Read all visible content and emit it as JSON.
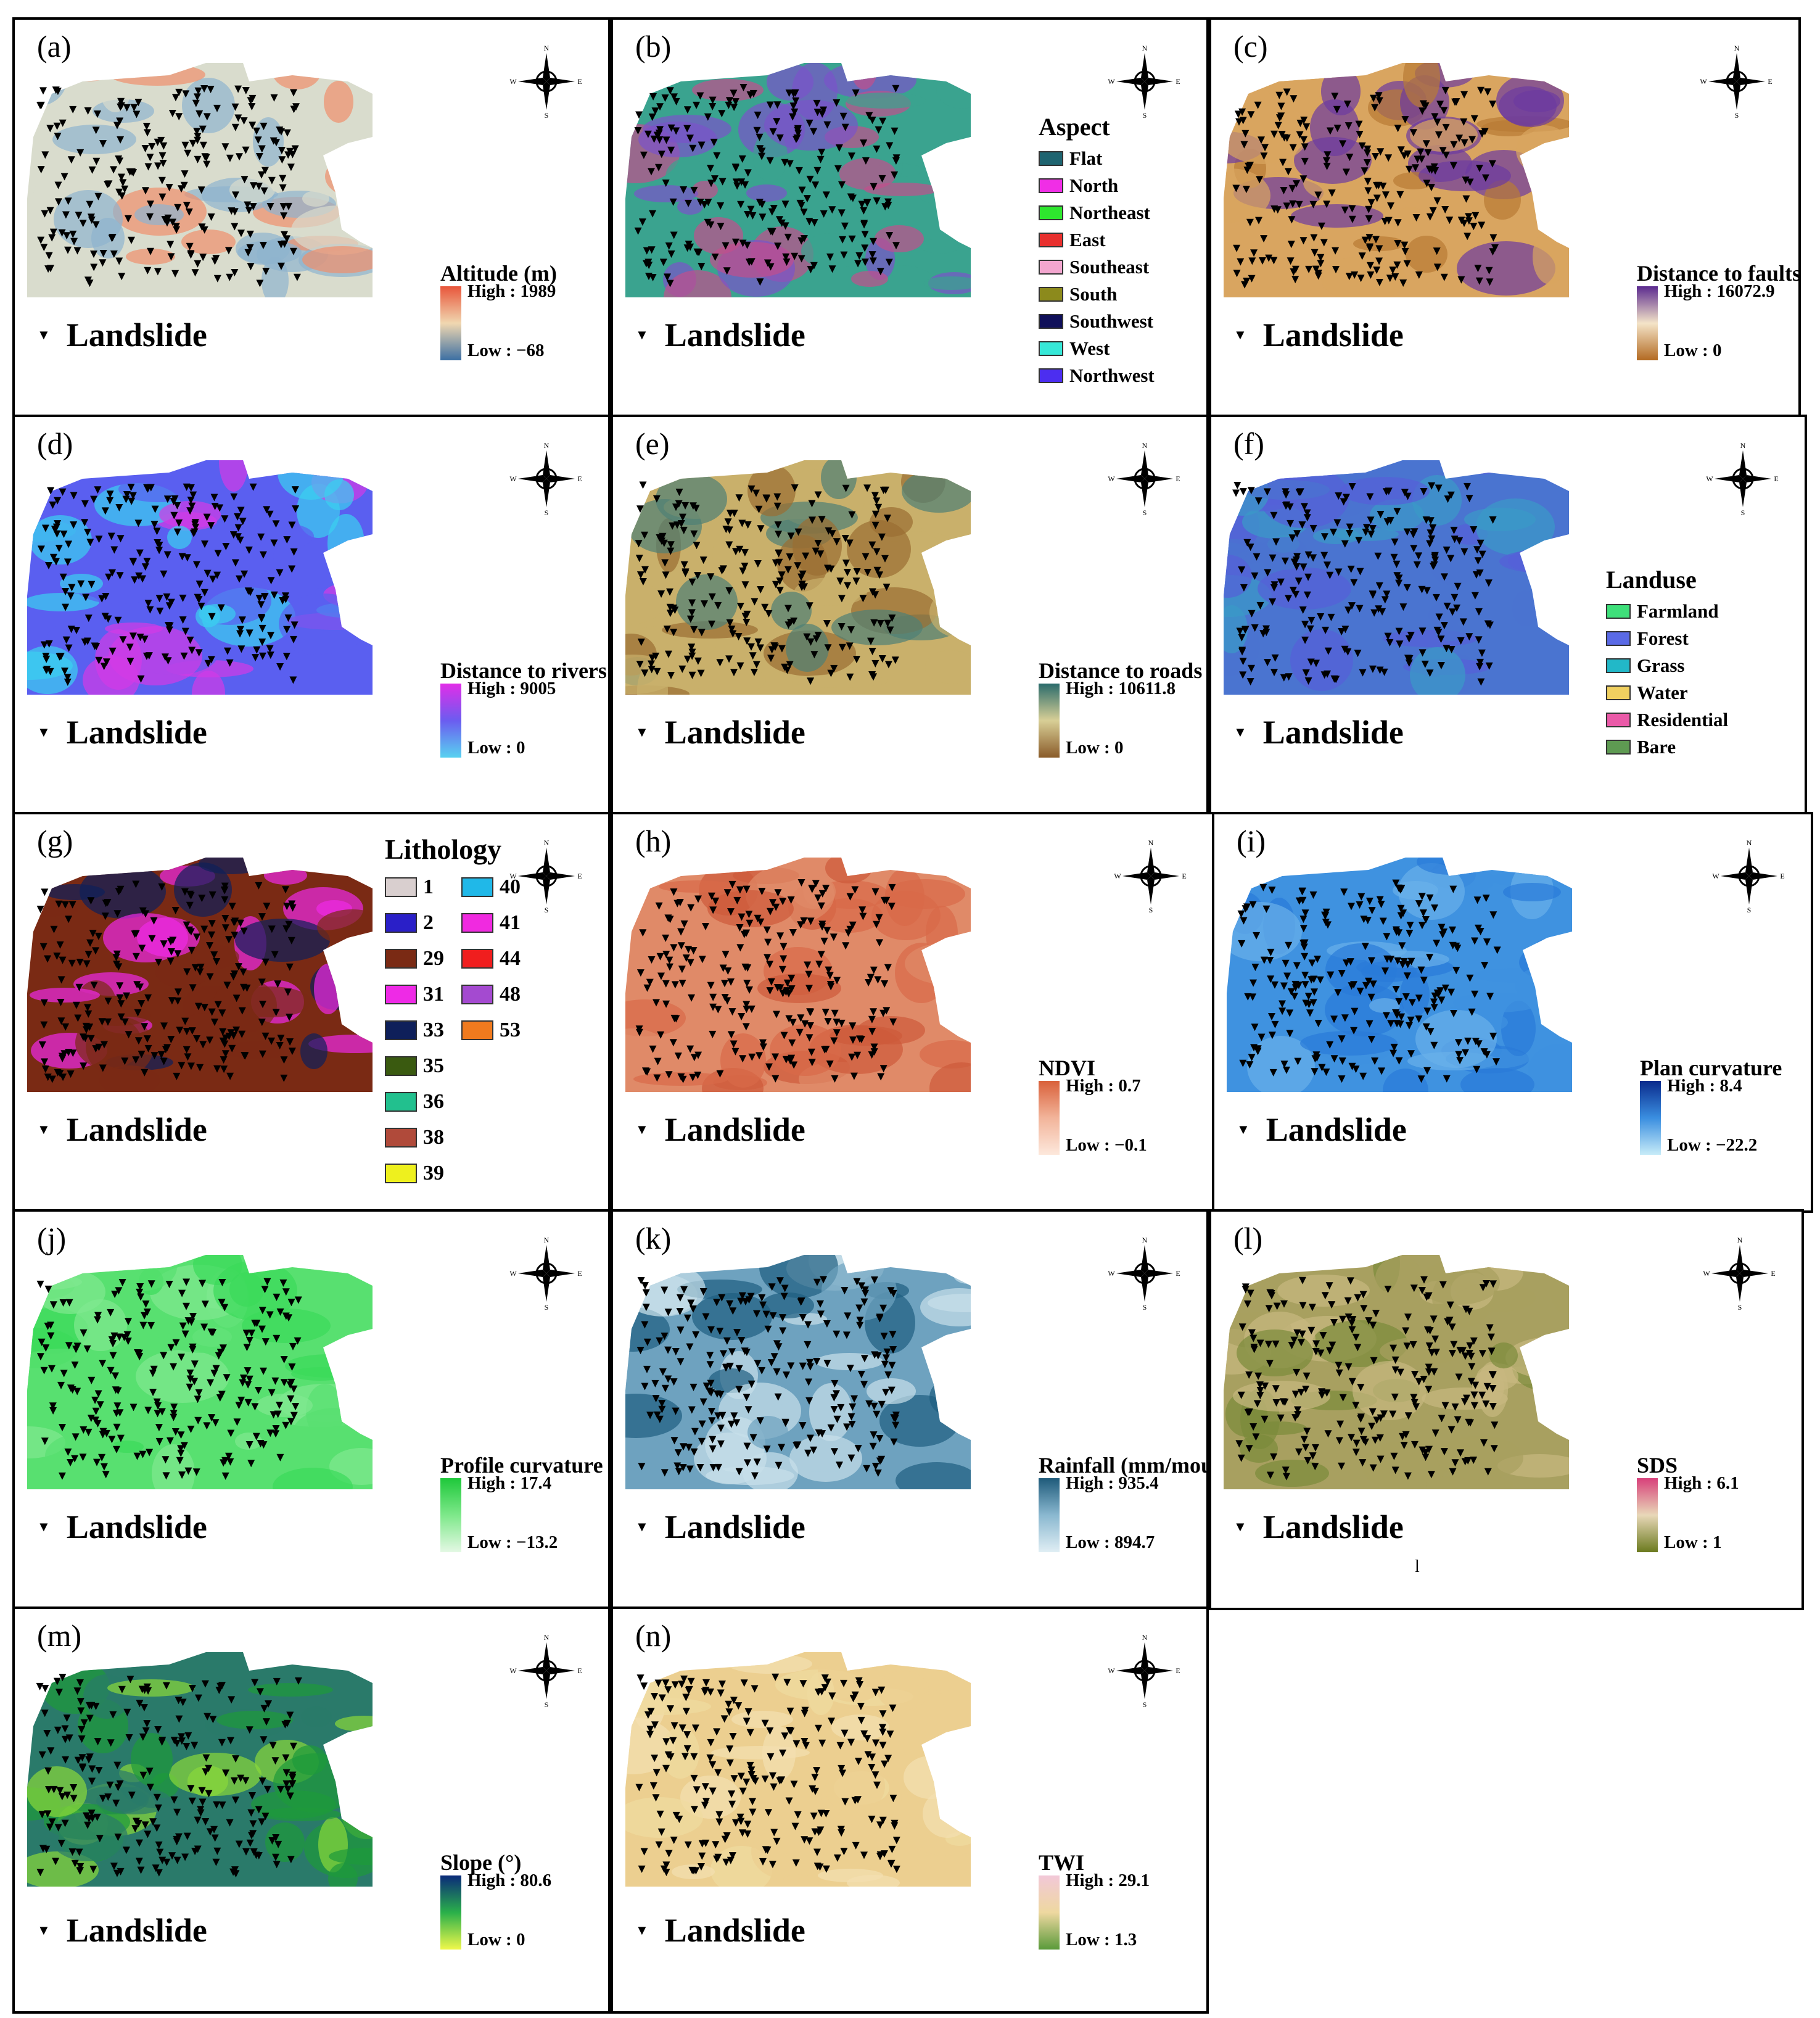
{
  "compass": {
    "n": "N",
    "s": "S",
    "e": "E",
    "w": "W"
  },
  "landslide_label": "Landslide",
  "panels": [
    {
      "letter": "(a)",
      "type": "ramp",
      "title": "Altitude (m)",
      "high": "High : 1989",
      "low": "Low : −68",
      "ramp": [
        "#e8553a",
        "#f0d7b0",
        "#3b6fa3"
      ],
      "fill": [
        "#ef8e6c",
        "#d9dccd",
        "#8fb3cf"
      ]
    },
    {
      "letter": "(b)",
      "type": "categorical",
      "title": "Aspect",
      "items": [
        {
          "label": "Flat",
          "color": "#1e6470"
        },
        {
          "label": "North",
          "color": "#f02ee6"
        },
        {
          "label": "Northeast",
          "color": "#2ee62e"
        },
        {
          "label": "East",
          "color": "#e8302e"
        },
        {
          "label": "Southeast",
          "color": "#f3a6cf"
        },
        {
          "label": "South",
          "color": "#8c8a1c"
        },
        {
          "label": "Southwest",
          "color": "#10105a"
        },
        {
          "label": "West",
          "color": "#36e8d8"
        },
        {
          "label": "Northwest",
          "color": "#4c2ef0"
        }
      ],
      "fill": [
        "#7a53c9",
        "#3aa38f",
        "#c24f8c"
      ]
    },
    {
      "letter": "(c)",
      "type": "ramp",
      "title": "Distance to faults (m)",
      "high": "High : 16072.9",
      "low": "Low : 0",
      "ramp": [
        "#5b2a8f",
        "#f4e4c8",
        "#b36a22"
      ],
      "fill": [
        "#6c3aa0",
        "#d9a560",
        "#b87a34"
      ]
    },
    {
      "letter": "(d)",
      "type": "ramp",
      "title": "Distance to rivers (m)",
      "high": "High : 9005",
      "low": "Low : 0",
      "ramp": [
        "#e22de8",
        "#6b5cf0",
        "#58d2f0"
      ],
      "fill": [
        "#d33be6",
        "#5a5ff0",
        "#3bd0ef"
      ]
    },
    {
      "letter": "(e)",
      "type": "ramp",
      "title": "Distance to roads (m)",
      "high": "High : 10611.8",
      "low": "Low : 0",
      "ramp": [
        "#2a6b6b",
        "#d8cf96",
        "#8a5b2a"
      ],
      "fill": [
        "#4e8075",
        "#c9b06b",
        "#9a6e32"
      ]
    },
    {
      "letter": "(f)",
      "type": "categorical",
      "title": "Landuse",
      "items": [
        {
          "label": "Farmland",
          "color": "#3ee07a"
        },
        {
          "label": "Forest",
          "color": "#5a6ae6"
        },
        {
          "label": "Grass",
          "color": "#22b8c8"
        },
        {
          "label": "Water",
          "color": "#f0d060"
        },
        {
          "label": "Residential",
          "color": "#ea5aa8"
        },
        {
          "label": "Bare",
          "color": "#5e9a52"
        }
      ],
      "fill": [
        "#5660d8",
        "#4a74d0",
        "#3a9ac8"
      ]
    },
    {
      "letter": "(g)",
      "type": "lithology",
      "title": "Lithology",
      "col1": [
        {
          "label": "1",
          "color": "#d9cfcf"
        },
        {
          "label": "2",
          "color": "#2a1fc8"
        },
        {
          "label": "29",
          "color": "#7a2a14"
        },
        {
          "label": "31",
          "color": "#ee2ae6"
        },
        {
          "label": "33",
          "color": "#0e1f5a"
        },
        {
          "label": "35",
          "color": "#3a5a10"
        },
        {
          "label": "36",
          "color": "#22c08e"
        },
        {
          "label": "38",
          "color": "#b04a3a"
        },
        {
          "label": "39",
          "color": "#eef01e"
        }
      ],
      "col2": [
        {
          "label": "40",
          "color": "#20b8e8"
        },
        {
          "label": "41",
          "color": "#f02ae0"
        },
        {
          "label": "44",
          "color": "#f01e1e"
        },
        {
          "label": "48",
          "color": "#a44ad0"
        },
        {
          "label": "53",
          "color": "#f07a1e"
        }
      ],
      "fill": [
        "#0e1f5a",
        "#7a2a14",
        "#ee2ae6"
      ]
    },
    {
      "letter": "(h)",
      "type": "ramp",
      "title": "NDVI",
      "high": "High : 0.7",
      "low": "Low : −0.1",
      "ramp": [
        "#d9603a",
        "#f2b49a",
        "#fde8dc"
      ],
      "fill": [
        "#d86a48",
        "#e08a68",
        "#cd5a3a"
      ]
    },
    {
      "letter": "(i)",
      "type": "ramp",
      "title": "Plan curvature",
      "high": "High : 8.4",
      "low": "Low : −22.2",
      "ramp": [
        "#0a2a8c",
        "#3a8ee0",
        "#c8ecf8"
      ],
      "fill": [
        "#2a7ad8",
        "#3f92e0",
        "#6ab0ea"
      ]
    },
    {
      "letter": "(j)",
      "type": "ramp",
      "title": "Profile curvature",
      "high": "High : 17.4",
      "low": "Low : −13.2",
      "ramp": [
        "#1ec83a",
        "#7ee88a",
        "#e4f8e4"
      ],
      "fill": [
        "#3ada5a",
        "#58e070",
        "#80e890"
      ]
    },
    {
      "letter": "(k)",
      "type": "ramp",
      "title": "Rainfall (mm/mouth)",
      "high": "High : 935.4",
      "low": "Low : 894.7",
      "ramp": [
        "#1e5a7a",
        "#8ab8d0",
        "#e0eef4"
      ],
      "fill": [
        "#c8dfe9",
        "#6ea2bf",
        "#1e5e80"
      ]
    },
    {
      "letter": "(l)",
      "type": "ramp",
      "title": "SDS",
      "high": "High : 6.1",
      "low": "Low : 1",
      "ramp": [
        "#d8407a",
        "#e8d8b8",
        "#6b7a1e"
      ],
      "fill": [
        "#7a8a3a",
        "#a8a060",
        "#c8b880"
      ]
    },
    {
      "letter": "(m)",
      "type": "ramp",
      "title": "Slope (°)",
      "high": "High : 80.6",
      "low": "Low : 0",
      "ramp": [
        "#0a2a7a",
        "#2ab04a",
        "#f0f84a"
      ],
      "fill": [
        "#1e9a3a",
        "#2a7a6a",
        "#8ad83a"
      ]
    },
    {
      "letter": "(n)",
      "type": "ramp",
      "title": "TWI",
      "high": "High : 29.1",
      "low": "Low : 1.3",
      "ramp": [
        "#f2c8d8",
        "#eed8a0",
        "#5a9a3a"
      ],
      "fill": [
        "#f0dca0",
        "#eccf90",
        "#f4e0b0"
      ]
    }
  ],
  "stray_mark": "l"
}
